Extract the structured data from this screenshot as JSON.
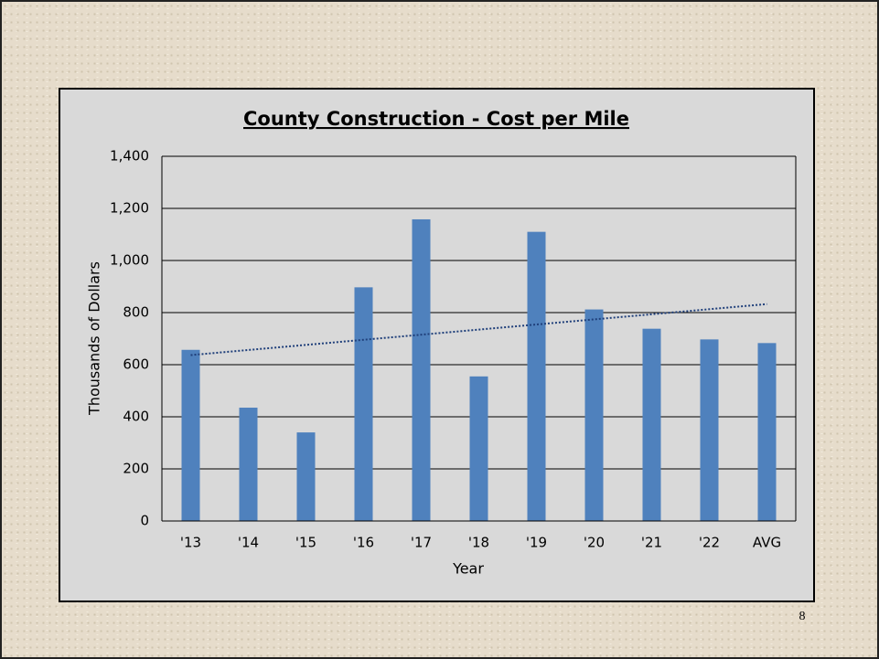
{
  "chart_data": {
    "type": "bar",
    "title": "County Construction - Cost per Mile",
    "x_label": "Year",
    "y_label": "Thousands of Dollars",
    "categories": [
      "'13",
      "'14",
      "'15",
      "'16",
      "'17",
      "'18",
      "'19",
      "'20",
      "'21",
      "'22",
      "AVG"
    ],
    "values": [
      657,
      435,
      340,
      897,
      1158,
      555,
      1110,
      812,
      738,
      697,
      683
    ],
    "color": "#4f81bd",
    "ylim": [
      0,
      1400
    ],
    "yticks": [
      0,
      200,
      400,
      600,
      800,
      {
        "value": 1000,
        "label": "1,000"
      },
      {
        "value": 1200,
        "label": "1,200"
      },
      {
        "value": 1400,
        "label": "1,400"
      }
    ],
    "grid": true,
    "trendline": true,
    "trendline_color": "#1f3f7a"
  },
  "page_number": "8"
}
